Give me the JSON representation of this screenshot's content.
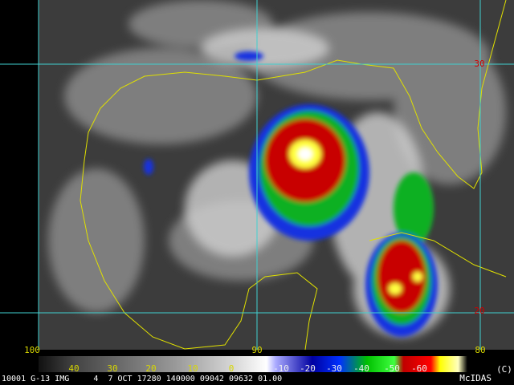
{
  "grid_labels": {
    "latitude": [
      "30",
      "20"
    ],
    "longitude": [
      "100",
      "90",
      "80"
    ]
  },
  "color_bar": {
    "labels": [
      "40",
      "30",
      "20",
      "10",
      "0",
      "-10",
      "-20",
      "-30",
      "-40",
      "-50",
      "-60"
    ],
    "credit": "(C)",
    "system": "McIDAS"
  },
  "status_line": "10001 G-13 IMG     4  7 OCT 17280 140000 09042 09632 01.00"
}
